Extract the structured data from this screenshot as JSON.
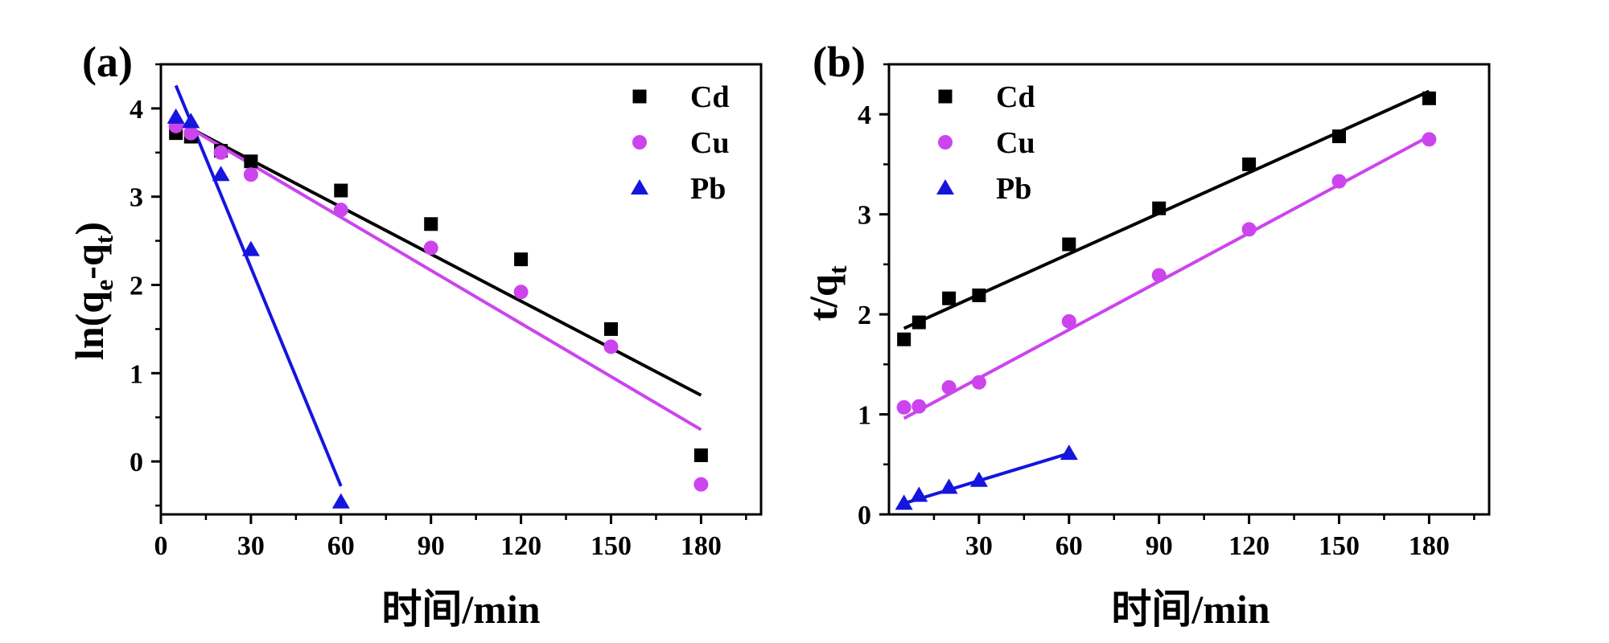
{
  "chart_data": [
    {
      "panel": "a",
      "panel_label": "(a)",
      "type": "scatter",
      "xlabel": "时间/min",
      "ylabel": {
        "prefix": "ln(q",
        "sub1": "e",
        "mid": "-q",
        "sub2": "t",
        "suffix": ")"
      },
      "xlim": [
        0,
        200
      ],
      "ylim": [
        -0.6,
        4.5
      ],
      "xticks": [
        0,
        30,
        60,
        90,
        120,
        150,
        180
      ],
      "xtick_labels": [
        "0",
        "30",
        "60",
        "90",
        "120",
        "150",
        "180"
      ],
      "yticks": [
        0,
        1,
        2,
        3,
        4
      ],
      "ytick_labels": [
        "0",
        "1",
        "2",
        "3",
        "4"
      ],
      "legend_position": "top-right",
      "series": [
        {
          "name": "Cd",
          "color": "#000000",
          "marker": "square",
          "x": [
            5,
            10,
            20,
            30,
            60,
            90,
            120,
            150,
            180
          ],
          "y": [
            3.72,
            3.68,
            3.52,
            3.4,
            3.07,
            2.69,
            2.29,
            1.5,
            0.07
          ],
          "fit": {
            "x": [
              5,
              180
            ],
            "y": [
              3.86,
              0.75
            ]
          }
        },
        {
          "name": "Cu",
          "color": "#cc44ee",
          "marker": "circle",
          "x": [
            5,
            10,
            20,
            30,
            60,
            90,
            120,
            150,
            180
          ],
          "y": [
            3.8,
            3.72,
            3.5,
            3.25,
            2.85,
            2.42,
            1.92,
            1.3,
            -0.26
          ],
          "fit": {
            "x": [
              5,
              180
            ],
            "y": [
              3.87,
              0.36
            ]
          }
        },
        {
          "name": "Pb",
          "color": "#1515dd",
          "marker": "triangle",
          "x": [
            5,
            10,
            20,
            30,
            60
          ],
          "y": [
            3.9,
            3.85,
            3.25,
            2.4,
            -0.46
          ],
          "fit": {
            "x": [
              5,
              60
            ],
            "y": [
              4.26,
              -0.28
            ]
          }
        }
      ]
    },
    {
      "panel": "b",
      "panel_label": "(b)",
      "type": "scatter",
      "xlabel": "时间/min",
      "ylabel": {
        "prefix": "t/q",
        "sub1": "t",
        "mid": "",
        "sub2": "",
        "suffix": ""
      },
      "xlim": [
        0,
        200
      ],
      "ylim": [
        0,
        4.5
      ],
      "xticks": [
        30,
        60,
        90,
        120,
        150,
        180
      ],
      "xtick_labels": [
        "30",
        "60",
        "90",
        "120",
        "150",
        "180"
      ],
      "yticks": [
        0,
        1,
        2,
        3,
        4
      ],
      "ytick_labels": [
        "0",
        "1",
        "2",
        "3",
        "4"
      ],
      "legend_position": "top-left",
      "series": [
        {
          "name": "Cd",
          "color": "#000000",
          "marker": "square",
          "x": [
            5,
            10,
            20,
            30,
            60,
            90,
            120,
            150,
            180
          ],
          "y": [
            1.75,
            1.92,
            2.16,
            2.19,
            2.7,
            3.06,
            3.5,
            3.78,
            4.16
          ],
          "fit": {
            "x": [
              5,
              180
            ],
            "y": [
              1.86,
              4.23
            ]
          }
        },
        {
          "name": "Cu",
          "color": "#cc44ee",
          "marker": "circle",
          "x": [
            5,
            10,
            20,
            30,
            60,
            90,
            120,
            150,
            180
          ],
          "y": [
            1.07,
            1.08,
            1.27,
            1.32,
            1.93,
            2.39,
            2.85,
            3.33,
            3.75
          ],
          "fit": {
            "x": [
              5,
              180
            ],
            "y": [
              0.96,
              3.78
            ]
          }
        },
        {
          "name": "Pb",
          "color": "#1515dd",
          "marker": "triangle",
          "x": [
            5,
            10,
            20,
            30,
            60
          ],
          "y": [
            0.11,
            0.19,
            0.27,
            0.34,
            0.61
          ],
          "fit": {
            "x": [
              5,
              60
            ],
            "y": [
              0.11,
              0.61
            ]
          }
        }
      ]
    }
  ]
}
